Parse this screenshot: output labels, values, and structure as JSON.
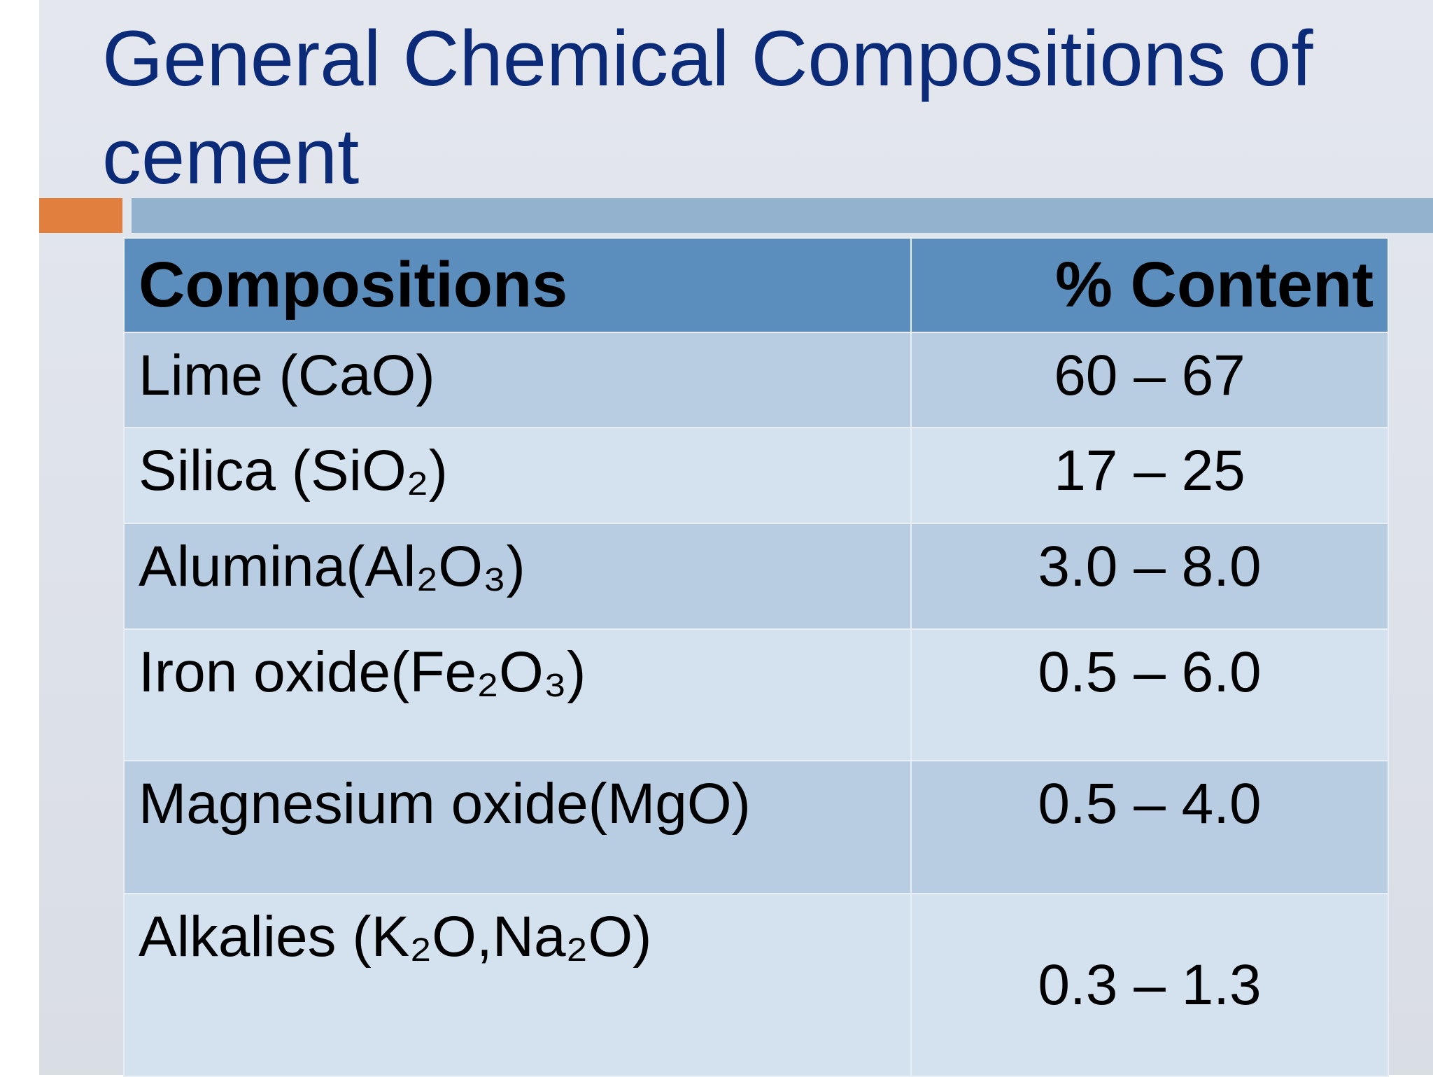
{
  "header": {
    "title": "General Chemical Compositions of cement"
  },
  "table": {
    "columns": [
      "Compositions",
      "% Content"
    ],
    "rows": [
      [
        "Lime (CaO)",
        "60 – 67"
      ],
      [
        "Silica (SiO₂)",
        "17 – 25"
      ],
      [
        "Alumina(Al₂O₃)",
        "3.0 – 8.0"
      ],
      [
        "Iron oxide(Fe₂O₃)",
        "0.5 – 6.0"
      ],
      [
        "Magnesium oxide(MgO)",
        "0.5 – 4.0"
      ],
      [
        "Alkalies (K₂O,Na₂O)",
        "0.3 – 1.3"
      ]
    ]
  }
}
